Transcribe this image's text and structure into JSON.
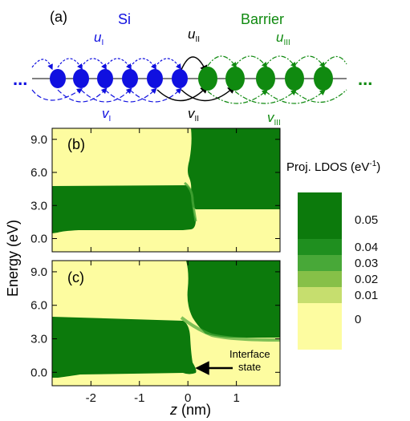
{
  "panel_a": {
    "label": "(a)",
    "region_left": "Si",
    "region_right": "Barrier",
    "color_left": "#1010e0",
    "color_right": "#108a10",
    "hop_labels": [
      {
        "var": "u",
        "sub": "I",
        "color": "#1010e0"
      },
      {
        "var": "v",
        "sub": "I",
        "color": "#1010e0"
      },
      {
        "var": "u",
        "sub": "II",
        "color": "#000000"
      },
      {
        "var": "v",
        "sub": "II",
        "color": "#000000"
      },
      {
        "var": "u",
        "sub": "III",
        "color": "#108a10"
      },
      {
        "var": "v",
        "sub": "III",
        "color": "#108a10"
      }
    ],
    "ellipsis": "...",
    "si_atoms": 6,
    "barrier_atoms": 6
  },
  "chart_data": [
    {
      "type": "heatmap",
      "panel_label": "(b)",
      "xlim": [
        -2.8,
        1.9
      ],
      "ylim": [
        -1.2,
        10.0
      ],
      "notes": "Green = high LDOS (>0.05 eV^-1) region, yellow = ~0. Band edge at z=0."
    },
    {
      "type": "heatmap",
      "panel_label": "(c)",
      "xlim": [
        -2.8,
        1.9
      ],
      "ylim": [
        -1.2,
        10.0
      ],
      "annotation": "Interface\nstate"
    }
  ],
  "axes": {
    "ylabel": "Energy (eV)",
    "xlabel_var": "z",
    "xlabel_unit": " (nm)",
    "yticks": [
      "9.0",
      "6.0",
      "3.0",
      "0.0"
    ],
    "ytick_values": [
      9.0,
      6.0,
      3.0,
      0.0
    ],
    "xticks": [
      "-2",
      "-1",
      "0",
      "1"
    ],
    "xtick_values": [
      -2,
      -1,
      0,
      1
    ]
  },
  "colorbar": {
    "title": "Proj. LDOS (eV",
    "title_exp": "-1",
    "title_close": ")",
    "labels": [
      "0.05",
      "0.04",
      "0.03",
      "0.02",
      "0.01",
      "0"
    ],
    "colors": [
      "#0c7a0c",
      "#1f8f1f",
      "#48a838",
      "#86c048",
      "#c6de6e",
      "#fdfca0"
    ]
  },
  "annotation": {
    "line1": "Interface",
    "line2": "state"
  }
}
